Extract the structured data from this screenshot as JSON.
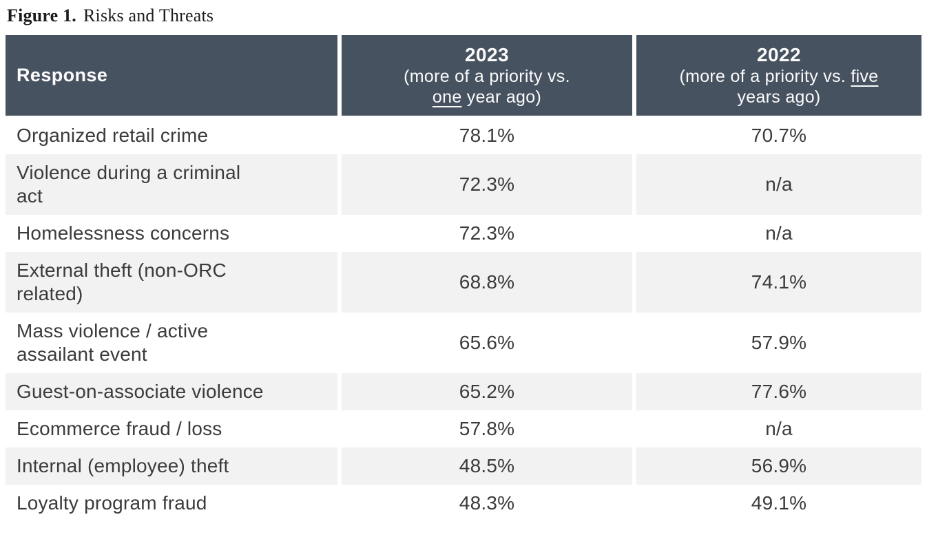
{
  "figure": {
    "label": "Figure 1.",
    "title": "Risks and Threats"
  },
  "table": {
    "columns": [
      {
        "label": "Response"
      },
      {
        "year": "2023",
        "sub_prefix": "(more of a priority vs.\n",
        "sub_underline": "one",
        "sub_suffix": " year ago)"
      },
      {
        "year": "2022",
        "sub_prefix": "(more of a priority vs. ",
        "sub_underline": "five",
        "sub_suffix": "\nyears ago)"
      }
    ],
    "rows": [
      {
        "label": "Organized retail crime",
        "v2023": "78.1%",
        "v2022": "70.7%"
      },
      {
        "label": "Violence during a criminal\nact",
        "v2023": "72.3%",
        "v2022": "n/a"
      },
      {
        "label": "Homelessness concerns",
        "v2023": "72.3%",
        "v2022": "n/a"
      },
      {
        "label": "External theft (non-ORC\nrelated)",
        "v2023": "68.8%",
        "v2022": "74.1%"
      },
      {
        "label": "Mass violence / active\nassailant event",
        "v2023": "65.6%",
        "v2022": "57.9%"
      },
      {
        "label": "Guest-on-associate violence",
        "v2023": "65.2%",
        "v2022": "77.6%"
      },
      {
        "label": "Ecommerce fraud / loss",
        "v2023": "57.8%",
        "v2022": "n/a"
      },
      {
        "label": "Internal (employee) theft",
        "v2023": "48.5%",
        "v2022": "56.9%"
      },
      {
        "label": "Loyalty program fraud",
        "v2023": "48.3%",
        "v2022": "49.1%"
      }
    ]
  },
  "colors": {
    "header_bg": "#475260",
    "header_text": "#fbfbfb",
    "stripe_bg": "#f2f2f3",
    "body_text": "#3b3b3b"
  },
  "chart_data": {
    "type": "table",
    "title": "Figure 1. Risks and Threats",
    "columns": [
      "Response",
      "2023 (more of a priority vs. one year ago)",
      "2022 (more of a priority vs. five years ago)"
    ],
    "units": "percent",
    "na_display": "n/a",
    "rows": [
      [
        "Organized retail crime",
        78.1,
        70.7
      ],
      [
        "Violence during a criminal act",
        72.3,
        null
      ],
      [
        "Homelessness concerns",
        72.3,
        null
      ],
      [
        "External theft (non-ORC related)",
        68.8,
        74.1
      ],
      [
        "Mass violence / active assailant event",
        65.6,
        57.9
      ],
      [
        "Guest-on-associate violence",
        65.2,
        77.6
      ],
      [
        "Ecommerce fraud / loss",
        57.8,
        null
      ],
      [
        "Internal (employee) theft",
        48.5,
        56.9
      ],
      [
        "Loyalty program fraud",
        48.3,
        49.1
      ]
    ]
  }
}
